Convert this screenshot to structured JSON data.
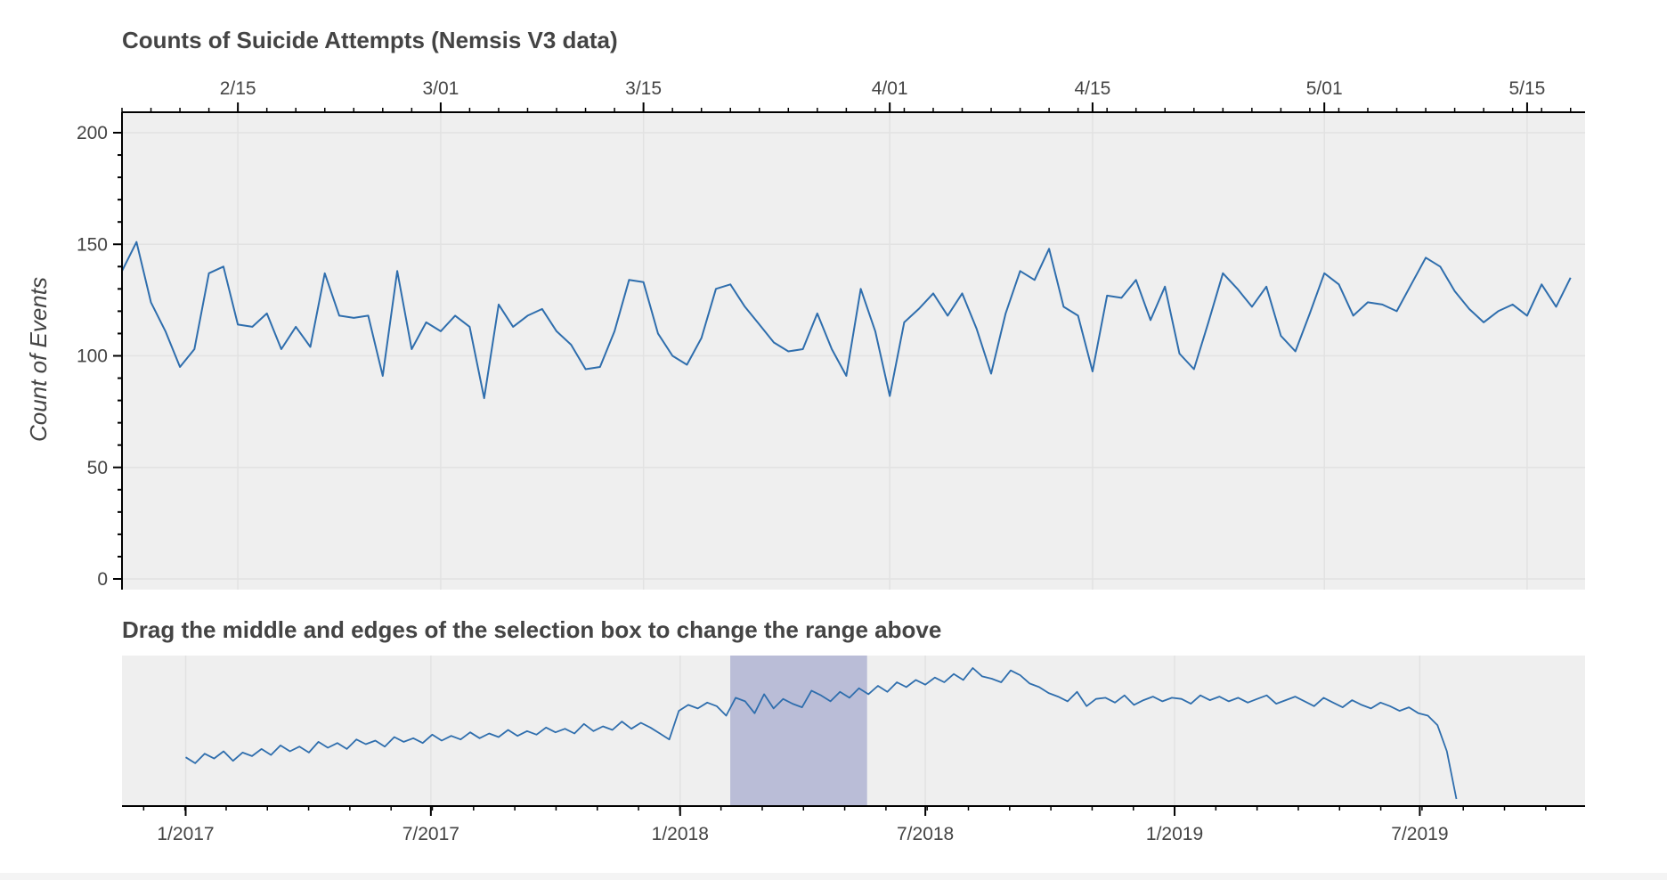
{
  "chart_data": [
    {
      "type": "line",
      "title": "Counts of Suicide Attempts (Nemsis V3 data)",
      "xlabel": "",
      "ylabel": "Count of Events",
      "x_axis_position": "top",
      "x_range": [
        "2018-02-07",
        "2018-05-19"
      ],
      "ylim": [
        0,
        200
      ],
      "y_ticks": [
        0,
        50,
        100,
        150,
        200
      ],
      "x_ticks": [
        {
          "date": "2018-02-15",
          "label": "2/15"
        },
        {
          "date": "2018-03-01",
          "label": "3/01"
        },
        {
          "date": "2018-03-15",
          "label": "3/15"
        },
        {
          "date": "2018-04-01",
          "label": "4/01"
        },
        {
          "date": "2018-04-15",
          "label": "4/15"
        },
        {
          "date": "2018-05-01",
          "label": "5/01"
        },
        {
          "date": "2018-05-15",
          "label": "5/15"
        }
      ],
      "grid": true,
      "background": "#efefef",
      "line_color": "#2f6ead",
      "series": [
        {
          "start_date": "2018-02-07",
          "values": [
            138,
            151,
            124,
            111,
            95,
            103,
            137,
            140,
            114,
            113,
            119,
            103,
            113,
            104,
            137,
            118,
            117,
            118,
            91,
            138,
            103,
            115,
            111,
            118,
            113,
            81,
            123,
            113,
            118,
            121,
            111,
            105,
            94,
            95,
            111,
            134,
            133,
            110,
            100,
            96,
            108,
            130,
            132,
            122,
            114,
            106,
            102,
            103,
            119,
            103,
            91,
            130,
            111,
            82,
            115,
            121,
            128,
            118,
            128,
            112,
            92,
            119,
            138,
            134,
            148,
            122,
            118,
            93,
            127,
            126,
            134,
            116,
            131,
            101,
            94,
            115,
            137,
            130,
            122,
            131,
            109,
            102,
            119,
            137,
            132,
            118,
            124,
            123,
            120,
            132,
            144,
            140,
            129,
            121,
            115,
            120,
            123,
            118,
            132,
            122,
            135
          ]
        }
      ]
    },
    {
      "type": "line",
      "title": "Drag the middle and edges of the selection box to change the range above",
      "xlabel": "",
      "ylabel": "",
      "x_range": [
        "2016-11-15",
        "2019-10-31"
      ],
      "x_ticks": [
        {
          "date": "2017-01-01",
          "label": "1/2017"
        },
        {
          "date": "2017-07-01",
          "label": "7/2017"
        },
        {
          "date": "2018-01-01",
          "label": "1/2018"
        },
        {
          "date": "2018-07-01",
          "label": "7/2018"
        },
        {
          "date": "2019-01-01",
          "label": "1/2019"
        },
        {
          "date": "2019-07-01",
          "label": "7/2019"
        }
      ],
      "selection_range": [
        "2018-02-07",
        "2018-05-19"
      ],
      "selection_color": "#b4b7d4",
      "grid": true,
      "background": "#efefef",
      "line_color": "#2f6ead",
      "series": [
        {
          "sampling": "weekly",
          "start_date": "2017-01-01",
          "values": [
            75,
            70,
            78,
            74,
            80,
            72,
            79,
            76,
            82,
            77,
            85,
            80,
            84,
            79,
            88,
            83,
            87,
            82,
            90,
            86,
            89,
            84,
            92,
            88,
            91,
            87,
            94,
            89,
            93,
            90,
            96,
            91,
            95,
            92,
            98,
            93,
            97,
            94,
            100,
            96,
            99,
            95,
            103,
            97,
            101,
            98,
            105,
            99,
            104,
            100,
            95,
            90,
            114,
            119,
            116,
            121,
            118,
            110,
            125,
            122,
            112,
            128,
            116,
            124,
            120,
            117,
            131,
            127,
            122,
            130,
            125,
            133,
            128,
            135,
            130,
            138,
            134,
            140,
            136,
            142,
            138,
            145,
            140,
            150,
            143,
            141,
            138,
            148,
            144,
            137,
            134,
            129,
            126,
            122,
            130,
            118,
            124,
            125,
            121,
            127,
            119,
            123,
            126,
            122,
            125,
            124,
            120,
            127,
            123,
            126,
            122,
            125,
            121,
            124,
            127,
            120,
            123,
            126,
            122,
            118,
            125,
            121,
            117,
            123,
            119,
            116,
            121,
            118,
            114,
            117,
            112,
            110,
            102,
            80,
            40
          ]
        }
      ]
    }
  ]
}
